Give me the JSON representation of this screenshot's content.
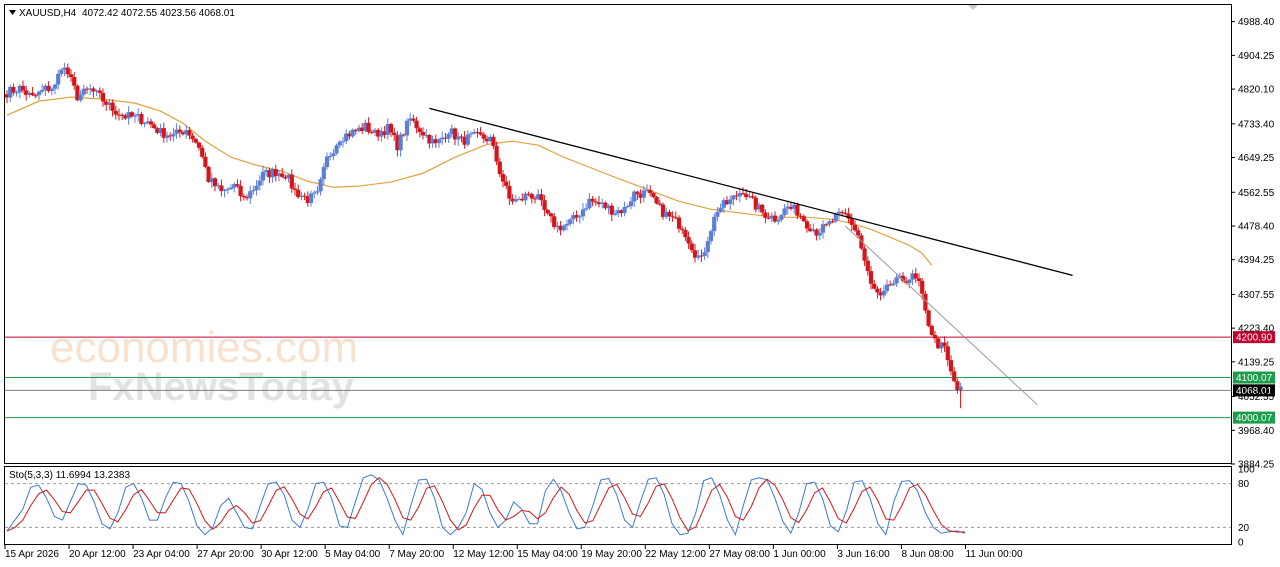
{
  "header": {
    "symbol_timeframe": "XAUUSD,H4",
    "ohlc": "4072.42 4072.55 4023.56 4068.01"
  },
  "watermark": {
    "line1": "economies.com",
    "line2": "FxNewsToday"
  },
  "colors": {
    "bull": "#5b7fd6",
    "bear": "#d6151b",
    "ma": "#e3a13c",
    "resistance_line": "#c0002f",
    "support_line": "#1a9e4a",
    "current_price_line": "#7f7f7f",
    "stoch_main": "#3a7bd5",
    "stoch_signal": "#d6151b"
  },
  "chart_data": [
    {
      "type": "candlestick",
      "title": "XAUUSD,H4",
      "ylim": [
        3884.25,
        5030
      ],
      "y_ticks": [
        "4988.40",
        "4904.25",
        "4820.10",
        "4733.40",
        "4649.25",
        "4562.55",
        "4478.40",
        "4394.25",
        "4307.55",
        "4223.40",
        "4139.25",
        "4052.55",
        "3968.40",
        "3884.25"
      ],
      "x_ticks": [
        "15 Apr 2026",
        "20 Apr 12:00",
        "23 Apr 04:00",
        "27 Apr 20:00",
        "30 Apr 12:00",
        "5 May 04:00",
        "7 May 20:00",
        "12 May 12:00",
        "15 May 04:00",
        "19 May 20:00",
        "22 May 12:00",
        "27 May 08:00",
        "1 Jun 00:00",
        "3 Jun 16:00",
        "8 Jun 08:00",
        "11 Jun 00:00"
      ],
      "anchors": [
        [
          0,
          4812
        ],
        [
          4,
          4822
        ],
        [
          8,
          4798
        ],
        [
          12,
          4820
        ],
        [
          15,
          4826
        ],
        [
          17,
          4880
        ],
        [
          19,
          4858
        ],
        [
          22,
          4802
        ],
        [
          26,
          4818
        ],
        [
          29,
          4800
        ],
        [
          33,
          4770
        ],
        [
          37,
          4752
        ],
        [
          41,
          4748
        ],
        [
          44,
          4738
        ],
        [
          48,
          4712
        ],
        [
          52,
          4704
        ],
        [
          56,
          4720
        ],
        [
          60,
          4678
        ],
        [
          63,
          4595
        ],
        [
          67,
          4562
        ],
        [
          71,
          4578
        ],
        [
          74,
          4545
        ],
        [
          77,
          4572
        ],
        [
          80,
          4606
        ],
        [
          84,
          4614
        ],
        [
          87,
          4608
        ],
        [
          90,
          4565
        ],
        [
          94,
          4545
        ],
        [
          97,
          4555
        ],
        [
          100,
          4645
        ],
        [
          104,
          4700
        ],
        [
          108,
          4712
        ],
        [
          112,
          4726
        ],
        [
          115,
          4708
        ],
        [
          119,
          4722
        ],
        [
          122,
          4680
        ],
        [
          126,
          4745
        ],
        [
          130,
          4712
        ],
        [
          134,
          4680
        ],
        [
          138,
          4718
        ],
        [
          142,
          4690
        ],
        [
          145,
          4700
        ],
        [
          148,
          4700
        ],
        [
          151,
          4695
        ],
        [
          154,
          4615
        ],
        [
          157,
          4545
        ],
        [
          160,
          4540
        ],
        [
          163,
          4560
        ],
        [
          166,
          4545
        ],
        [
          169,
          4500
        ],
        [
          172,
          4475
        ],
        [
          175,
          4482
        ],
        [
          178,
          4500
        ],
        [
          182,
          4542
        ],
        [
          186,
          4530
        ],
        [
          190,
          4515
        ],
        [
          193,
          4520
        ],
        [
          196,
          4560
        ],
        [
          200,
          4560
        ],
        [
          204,
          4520
        ],
        [
          207,
          4500
        ],
        [
          211,
          4478
        ],
        [
          213,
          4445
        ],
        [
          215,
          4412
        ],
        [
          217,
          4392
        ],
        [
          219,
          4450
        ],
        [
          222,
          4520
        ],
        [
          226,
          4540
        ],
        [
          230,
          4570
        ],
        [
          232,
          4545
        ],
        [
          236,
          4512
        ],
        [
          240,
          4498
        ],
        [
          244,
          4525
        ],
        [
          247,
          4515
        ],
        [
          250,
          4485
        ],
        [
          253,
          4465
        ],
        [
          256,
          4475
        ],
        [
          259,
          4500
        ],
        [
          262,
          4505
        ],
        [
          264,
          4485
        ],
        [
          266,
          4455
        ],
        [
          268,
          4390
        ],
        [
          270,
          4330
        ],
        [
          273,
          4295
        ],
        [
          276,
          4332
        ],
        [
          280,
          4345
        ],
        [
          283,
          4350
        ],
        [
          285,
          4335
        ],
        [
          287,
          4260
        ],
        [
          290,
          4190
        ],
        [
          293,
          4170
        ],
        [
          295,
          4110
        ],
        [
          297,
          4070
        ],
        [
          298,
          4068
        ]
      ],
      "moving_average": [
        [
          0,
          4755
        ],
        [
          10,
          4790
        ],
        [
          20,
          4800
        ],
        [
          30,
          4795
        ],
        [
          40,
          4785
        ],
        [
          48,
          4765
        ],
        [
          55,
          4735
        ],
        [
          62,
          4690
        ],
        [
          70,
          4650
        ],
        [
          78,
          4630
        ],
        [
          86,
          4615
        ],
        [
          94,
          4590
        ],
        [
          102,
          4575
        ],
        [
          110,
          4578
        ],
        [
          120,
          4588
        ],
        [
          130,
          4610
        ],
        [
          140,
          4650
        ],
        [
          150,
          4682
        ],
        [
          158,
          4690
        ],
        [
          166,
          4680
        ],
        [
          174,
          4650
        ],
        [
          182,
          4625
        ],
        [
          190,
          4600
        ],
        [
          200,
          4570
        ],
        [
          210,
          4540
        ],
        [
          220,
          4520
        ],
        [
          230,
          4510
        ],
        [
          240,
          4500
        ],
        [
          250,
          4500
        ],
        [
          258,
          4495
        ],
        [
          264,
          4485
        ],
        [
          270,
          4470
        ],
        [
          276,
          4450
        ],
        [
          282,
          4430
        ],
        [
          286,
          4410
        ],
        [
          289,
          4380
        ]
      ],
      "trendlines": [
        {
          "from": [
            132,
            4772
          ],
          "to": [
            333,
            4355
          ],
          "color": "#000000"
        },
        {
          "from": [
            262,
            4478
          ],
          "to": [
            322,
            4032
          ],
          "color": "#9a9a9a"
        }
      ],
      "horizontal_levels": [
        {
          "value": 4200.9,
          "label": "4200.90",
          "color": "#c0002f"
        },
        {
          "value": 4100.07,
          "label": "4100.07",
          "color": "#1a9e4a"
        },
        {
          "value": 4068.01,
          "label": "4068.01",
          "color": "#7f7f7f"
        },
        {
          "value": 4000.07,
          "label": "4000.07",
          "color": "#1a9e4a"
        }
      ]
    },
    {
      "type": "line",
      "title": "Sto(5,3,3) 11.6994 13.2383",
      "ylim": [
        0,
        100
      ],
      "y_ticks": [
        "100",
        "80",
        "20",
        "0"
      ],
      "levels": [
        80,
        20
      ],
      "series": [
        {
          "values": [
            15,
            30,
            45,
            75,
            78,
            60,
            35,
            30,
            55,
            80,
            78,
            55,
            25,
            18,
            40,
            75,
            80,
            60,
            30,
            30,
            60,
            82,
            80,
            55,
            22,
            10,
            20,
            50,
            60,
            40,
            20,
            18,
            50,
            80,
            82,
            65,
            30,
            20,
            45,
            80,
            82,
            60,
            22,
            20,
            55,
            88,
            92,
            85,
            60,
            30,
            10,
            50,
            85,
            86,
            60,
            20,
            10,
            20,
            40,
            80,
            72,
            40,
            20,
            30,
            55,
            45,
            25,
            25,
            70,
            86,
            70,
            40,
            18,
            20,
            50,
            85,
            87,
            65,
            30,
            20,
            55,
            86,
            88,
            65,
            25,
            10,
            12,
            40,
            84,
            88,
            65,
            30,
            10,
            50,
            85,
            88,
            85,
            60,
            28,
            12,
            40,
            80,
            82,
            60,
            22,
            14,
            42,
            82,
            84,
            60,
            25,
            10,
            55,
            83,
            84,
            70,
            40,
            20,
            12,
            14,
            15,
            12
          ]
        }
      ]
    }
  ]
}
